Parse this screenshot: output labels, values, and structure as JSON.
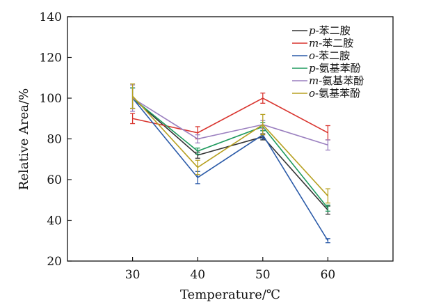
{
  "chart_data": {
    "type": "line",
    "title": "",
    "xlabel": "Temperature/℃",
    "ylabel": "Relative Area/%",
    "x": [
      30,
      40,
      50,
      60
    ],
    "xlim": [
      20,
      70
    ],
    "ylim": [
      20,
      140
    ],
    "yticks": [
      20,
      40,
      60,
      80,
      100,
      120,
      140
    ],
    "grid": false,
    "legend_position": "top-right",
    "series": [
      {
        "name": "p-苯二胺",
        "prefix": "p",
        "suffix": "-苯二胺",
        "color": "#333333",
        "values": [
          100,
          72,
          81,
          45
        ],
        "errors": [
          5,
          1.5,
          1.5,
          2
        ]
      },
      {
        "name": "m-苯二胺",
        "prefix": "m",
        "suffix": "-苯二胺",
        "color": "#d9352f",
        "values": [
          90,
          83,
          100,
          83
        ],
        "errors": [
          2.5,
          3,
          2.5,
          3.5
        ]
      },
      {
        "name": "o-苯二胺",
        "prefix": "o",
        "suffix": "-苯二胺",
        "color": "#2a5aa8",
        "values": [
          100,
          61,
          82,
          30
        ],
        "errors": [
          5,
          3,
          2,
          1
        ]
      },
      {
        "name": "p-氨基苯酚",
        "prefix": "p",
        "suffix": "-氨基苯酚",
        "color": "#1f9a5e",
        "values": [
          100,
          74,
          86,
          46
        ],
        "errors": [
          5,
          1.5,
          2,
          1.5
        ]
      },
      {
        "name": "m-氨基苯酚",
        "prefix": "m",
        "suffix": "-氨基苯酚",
        "color": "#9a7fbf",
        "values": [
          100,
          80,
          87,
          77
        ],
        "errors": [
          6.5,
          2,
          2,
          2.5
        ]
      },
      {
        "name": "o-氨基苯酚",
        "prefix": "o",
        "suffix": "-氨基苯酚",
        "color": "#b7a021",
        "values": [
          101,
          66,
          87,
          52
        ],
        "errors": [
          6,
          3.5,
          5,
          3.5
        ]
      }
    ]
  }
}
